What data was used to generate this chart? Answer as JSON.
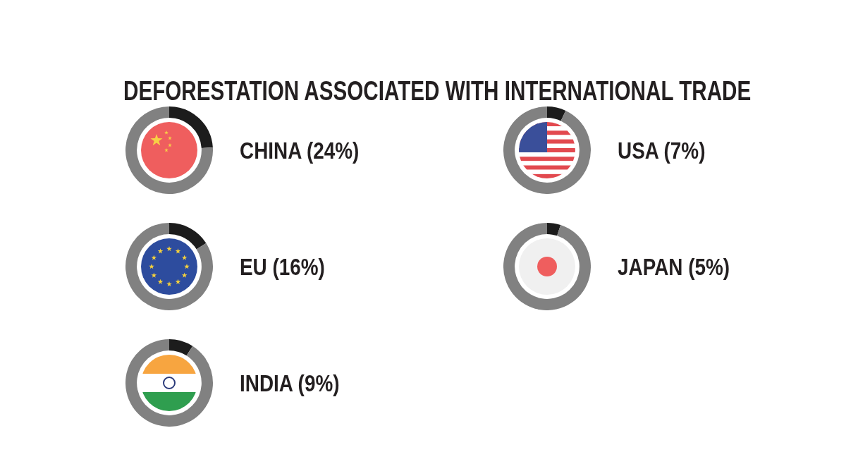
{
  "chart_data": [
    {
      "type": "other",
      "title": "DEFORESTATION ASSOCIATED WITH INTERNATIONAL TRADE"
    },
    {
      "type": "donut",
      "title": "CHINA (24%)",
      "categories": [
        null,
        null
      ],
      "values": [
        24,
        76
      ],
      "colors": [
        "#1c1c1c",
        "#818181"
      ]
    },
    {
      "type": "donut",
      "title": "EU (16%)",
      "categories": [
        null,
        null
      ],
      "values": [
        16,
        84
      ],
      "colors": [
        "#1c1c1c",
        "#818181"
      ]
    },
    {
      "type": "donut",
      "title": "INDIA (9%)",
      "categories": [
        null,
        null
      ],
      "values": [
        9,
        91
      ],
      "colors": [
        "#1c1c1c",
        "#818181"
      ]
    },
    {
      "type": "donut",
      "title": "USA (7%)",
      "categories": [
        null,
        null
      ],
      "values": [
        7,
        93
      ],
      "colors": [
        "#1c1c1c",
        "#818181"
      ]
    },
    {
      "type": "donut",
      "title": "JAPAN (5%)",
      "categories": [
        null,
        null
      ],
      "values": [
        5,
        95
      ],
      "colors": [
        "#1c1c1c",
        "#818181"
      ]
    }
  ]
}
